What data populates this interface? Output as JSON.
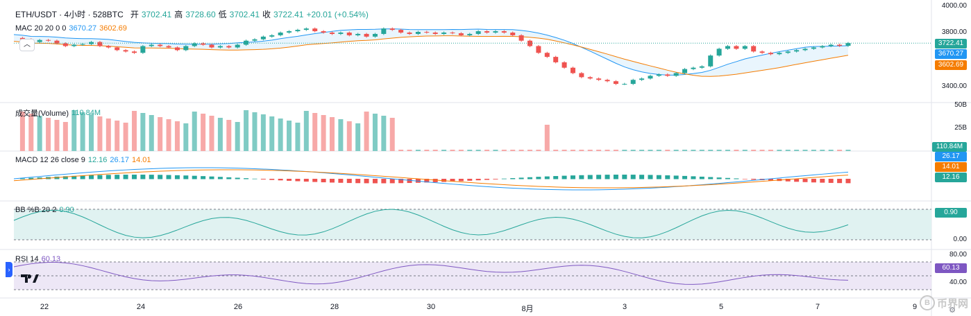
{
  "header": {
    "symbol": "ETH/USDT · 4小时 · 528BTC",
    "open_label": "开",
    "open": "3702.41",
    "high_label": "高",
    "high": "3728.60",
    "low_label": "低",
    "low": "3702.41",
    "close_label": "收",
    "close": "3722.41",
    "change": "+20.01 (+0.54%)"
  },
  "mac": {
    "label": "MAC 20 20 0 0",
    "v1": "3670.27",
    "v2": "3602.69"
  },
  "volume": {
    "label": "成交量(Volume)",
    "value": "110.84M"
  },
  "macd": {
    "label": "MACD 12 26 close 9",
    "v1": "12.16",
    "v2": "26.17",
    "v3": "14.01"
  },
  "bb": {
    "label": "BB %B 20 2",
    "value": "0.90"
  },
  "rsi": {
    "label": "RSI 14",
    "value": "60.13"
  },
  "price_axis": {
    "ticks": [
      "4000.00",
      "3800.00",
      "3400.00"
    ],
    "last": "3722.41",
    "upper": "3670.27",
    "lower": "3602.69"
  },
  "volume_axis": {
    "ticks": [
      "50B",
      "25B"
    ],
    "last": "110.84M"
  },
  "macd_axis": {
    "v1": "26.17",
    "v2": "14.01",
    "v3": "12.16"
  },
  "bb_axis": {
    "value": "0.90",
    "ticks": [
      "0.00"
    ]
  },
  "rsi_axis": {
    "value": "60.13",
    "ticks": [
      "80.00",
      "40.00"
    ]
  },
  "time_axis": [
    "22",
    "24",
    "26",
    "28",
    "30",
    "8月",
    "3",
    "5",
    "7",
    "9"
  ],
  "watermark": {
    "text": "币界网",
    "icon": "B"
  },
  "colors": {
    "up": "#26a69a",
    "down": "#ef5350",
    "blue": "#2196f3",
    "orange": "#f57c00",
    "purple": "#7e57c2",
    "bb_fill": "#e0f2f1"
  }
}
